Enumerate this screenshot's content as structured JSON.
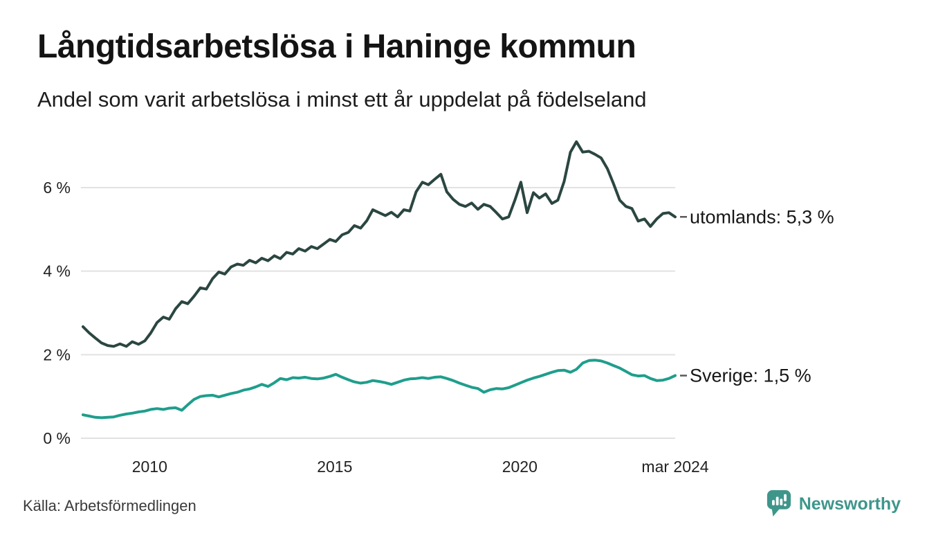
{
  "header": {
    "title": "Långtidsarbetslösa i Haninge kommun",
    "subtitle": "Andel som varit arbetslösa i minst ett år uppdelat på födelseland"
  },
  "footer": {
    "source": "Källa: Arbetsförmedlingen",
    "brand": "Newsworthy"
  },
  "colors": {
    "grid": "#e2e2e2",
    "tick": "#222222",
    "end_label": "#161616",
    "connector": "#5a5a5a",
    "title": "#141414",
    "source": "#3a3a3a",
    "brand": "#3e968b"
  },
  "chart_data": {
    "type": "line",
    "title": "Långtidsarbetslösa i Haninge kommun",
    "subtitle": "Andel som varit arbetslösa i minst ett år uppdelat på födelseland",
    "xlabel": "",
    "ylabel": "",
    "grid": "horizontal",
    "legend": "end-of-line-labels",
    "xlim": [
      2008.2,
      2024.2
    ],
    "ylim": [
      0,
      7.35
    ],
    "yticks": [
      {
        "value": 0,
        "label": "0 %"
      },
      {
        "value": 2,
        "label": "2 %"
      },
      {
        "value": 4,
        "label": "4 %"
      },
      {
        "value": 6,
        "label": "6 %"
      }
    ],
    "xticks": [
      {
        "value": 2010,
        "label": "2010"
      },
      {
        "value": 2015,
        "label": "2015"
      },
      {
        "value": 2020,
        "label": "2020"
      },
      {
        "value": 2024.2,
        "label": "mar 2024"
      }
    ],
    "x": [
      2008.2,
      2008.37,
      2008.53,
      2008.7,
      2008.87,
      2009.03,
      2009.2,
      2009.37,
      2009.53,
      2009.7,
      2009.87,
      2010.03,
      2010.2,
      2010.37,
      2010.53,
      2010.7,
      2010.87,
      2011.03,
      2011.2,
      2011.37,
      2011.53,
      2011.7,
      2011.87,
      2012.03,
      2012.2,
      2012.37,
      2012.53,
      2012.7,
      2012.87,
      2013.03,
      2013.2,
      2013.37,
      2013.53,
      2013.7,
      2013.87,
      2014.03,
      2014.2,
      2014.37,
      2014.53,
      2014.7,
      2014.87,
      2015.03,
      2015.2,
      2015.37,
      2015.53,
      2015.7,
      2015.87,
      2016.03,
      2016.2,
      2016.37,
      2016.53,
      2016.7,
      2016.87,
      2017.03,
      2017.2,
      2017.37,
      2017.53,
      2017.7,
      2017.87,
      2018.03,
      2018.2,
      2018.37,
      2018.53,
      2018.7,
      2018.87,
      2019.03,
      2019.2,
      2019.37,
      2019.53,
      2019.7,
      2019.87,
      2020.03,
      2020.2,
      2020.37,
      2020.53,
      2020.7,
      2020.87,
      2021.03,
      2021.2,
      2021.37,
      2021.53,
      2021.7,
      2021.87,
      2022.03,
      2022.2,
      2022.37,
      2022.53,
      2022.7,
      2022.87,
      2023.03,
      2023.2,
      2023.37,
      2023.53,
      2023.7,
      2023.87,
      2024.03,
      2024.2
    ],
    "series": [
      {
        "name": "utomlands",
        "end_label": "utomlands: 5,3 %",
        "end_value_text": "5,3 %",
        "color": "#2b4641",
        "values": [
          2.67,
          2.52,
          2.4,
          2.28,
          2.22,
          2.2,
          2.26,
          2.2,
          2.31,
          2.25,
          2.33,
          2.52,
          2.77,
          2.9,
          2.85,
          3.1,
          3.27,
          3.22,
          3.4,
          3.6,
          3.57,
          3.82,
          3.98,
          3.93,
          4.1,
          4.17,
          4.14,
          4.26,
          4.2,
          4.31,
          4.25,
          4.37,
          4.3,
          4.45,
          4.41,
          4.54,
          4.48,
          4.59,
          4.54,
          4.65,
          4.76,
          4.71,
          4.87,
          4.93,
          5.09,
          5.03,
          5.21,
          5.47,
          5.4,
          5.33,
          5.41,
          5.3,
          5.47,
          5.44,
          5.9,
          6.13,
          6.07,
          6.2,
          6.32,
          5.9,
          5.72,
          5.6,
          5.55,
          5.63,
          5.48,
          5.6,
          5.55,
          5.4,
          5.25,
          5.3,
          5.7,
          6.13,
          5.4,
          5.88,
          5.75,
          5.85,
          5.62,
          5.7,
          6.15,
          6.85,
          7.1,
          6.85,
          6.87,
          6.8,
          6.71,
          6.45,
          6.1,
          5.7,
          5.55,
          5.5,
          5.2,
          5.25,
          5.07,
          5.25,
          5.38,
          5.4,
          5.3
        ]
      },
      {
        "name": "Sverige",
        "end_label": "Sverige: 1,5 %",
        "end_value_text": "1,5 %",
        "color": "#1f9e8c",
        "values": [
          0.56,
          0.53,
          0.5,
          0.49,
          0.5,
          0.51,
          0.55,
          0.58,
          0.6,
          0.63,
          0.65,
          0.69,
          0.71,
          0.69,
          0.72,
          0.73,
          0.67,
          0.8,
          0.93,
          1.0,
          1.02,
          1.03,
          0.99,
          1.03,
          1.07,
          1.1,
          1.15,
          1.18,
          1.23,
          1.29,
          1.24,
          1.33,
          1.43,
          1.4,
          1.45,
          1.44,
          1.46,
          1.43,
          1.42,
          1.44,
          1.48,
          1.53,
          1.46,
          1.4,
          1.35,
          1.32,
          1.34,
          1.38,
          1.36,
          1.33,
          1.29,
          1.34,
          1.39,
          1.42,
          1.43,
          1.45,
          1.43,
          1.46,
          1.47,
          1.43,
          1.38,
          1.32,
          1.27,
          1.22,
          1.19,
          1.1,
          1.16,
          1.19,
          1.18,
          1.21,
          1.27,
          1.33,
          1.39,
          1.44,
          1.48,
          1.53,
          1.58,
          1.62,
          1.63,
          1.58,
          1.65,
          1.8,
          1.86,
          1.87,
          1.85,
          1.8,
          1.74,
          1.68,
          1.6,
          1.52,
          1.49,
          1.5,
          1.43,
          1.38,
          1.39,
          1.43,
          1.5
        ]
      }
    ]
  }
}
